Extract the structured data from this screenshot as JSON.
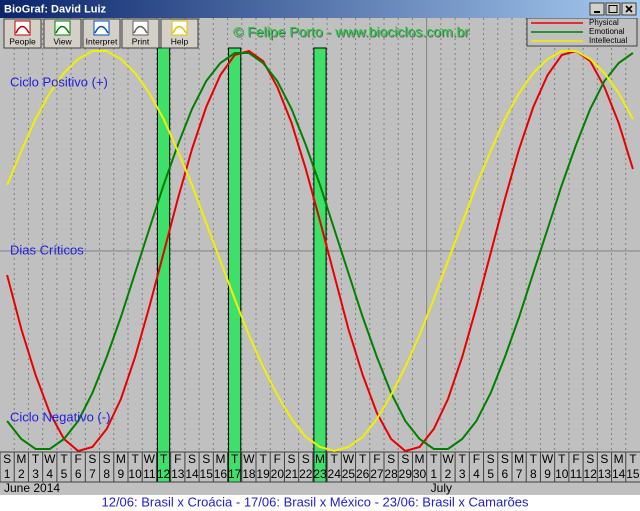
{
  "window": {
    "title": "BioGraf: David Luiz"
  },
  "toolbar": [
    "People",
    "View",
    "Interpret",
    "Print",
    "Help"
  ],
  "chart_data": {
    "type": "line",
    "watermark": "© Felipe Porto - www.biociclos.com.br",
    "annotations": {
      "positive": "Ciclo Positivo (+)",
      "critical": "Dias Críticos",
      "negative": "Ciclo Negativo (-)"
    },
    "x": [
      1,
      2,
      3,
      4,
      5,
      6,
      7,
      8,
      9,
      10,
      11,
      12,
      13,
      14,
      15,
      16,
      17,
      18,
      19,
      20,
      21,
      22,
      23,
      24,
      25,
      26,
      27,
      28,
      29,
      30,
      1,
      2,
      3,
      4,
      5,
      6,
      7,
      8,
      9,
      10,
      11,
      12,
      13,
      14,
      15
    ],
    "weekdays": [
      "S",
      "M",
      "T",
      "W",
      "T",
      "F",
      "S",
      "S",
      "M",
      "T",
      "W",
      "T",
      "F",
      "S",
      "S",
      "M",
      "T",
      "W",
      "T",
      "F",
      "S",
      "S",
      "M",
      "T",
      "W",
      "T",
      "F",
      "S",
      "S",
      "M",
      "T",
      "W",
      "T",
      "F",
      "S",
      "S",
      "M",
      "T",
      "W",
      "T",
      "F",
      "S",
      "S",
      "M",
      "T"
    ],
    "months": [
      "June 2014",
      "July"
    ],
    "critical_days": [
      12,
      17,
      23
    ],
    "critical_color": "#3ee06a",
    "ylim": [
      -1,
      1
    ],
    "grid": true,
    "legend": "top-right",
    "series": [
      {
        "name": "Physical",
        "color": "#e80000",
        "values": [
          -0.12,
          -0.39,
          -0.62,
          -0.81,
          -0.94,
          -1.0,
          -0.98,
          -0.89,
          -0.74,
          -0.53,
          -0.28,
          -0.01,
          0.26,
          0.51,
          0.72,
          0.88,
          0.98,
          1.0,
          0.95,
          0.82,
          0.64,
          0.41,
          0.15,
          -0.12,
          -0.39,
          -0.62,
          -0.81,
          -0.94,
          -1.0,
          -0.98,
          -0.89,
          -0.74,
          -0.53,
          -0.28,
          -0.01,
          0.26,
          0.51,
          0.72,
          0.88,
          0.98,
          1.0,
          0.95,
          0.82,
          0.64,
          0.41
        ]
      },
      {
        "name": "Emotional",
        "color": "#008000",
        "values": [
          -0.85,
          -0.94,
          -0.99,
          -0.99,
          -0.94,
          -0.85,
          -0.71,
          -0.53,
          -0.33,
          -0.11,
          0.11,
          0.33,
          0.53,
          0.71,
          0.85,
          0.94,
          0.99,
          0.99,
          0.94,
          0.85,
          0.71,
          0.53,
          0.33,
          0.11,
          -0.11,
          -0.33,
          -0.53,
          -0.71,
          -0.85,
          -0.94,
          -0.99,
          -0.99,
          -0.94,
          -0.85,
          -0.71,
          -0.53,
          -0.33,
          -0.11,
          0.11,
          0.33,
          0.53,
          0.71,
          0.85,
          0.94,
          0.99
        ]
      },
      {
        "name": "Intellectual",
        "color": "#f0f000",
        "values": [
          0.33,
          0.5,
          0.66,
          0.79,
          0.89,
          0.96,
          1.0,
          1.0,
          0.96,
          0.89,
          0.79,
          0.66,
          0.5,
          0.33,
          0.14,
          -0.05,
          -0.24,
          -0.42,
          -0.58,
          -0.72,
          -0.84,
          -0.93,
          -0.98,
          -1.0,
          -0.98,
          -0.93,
          -0.84,
          -0.72,
          -0.58,
          -0.42,
          -0.24,
          -0.05,
          0.14,
          0.33,
          0.5,
          0.66,
          0.79,
          0.89,
          0.96,
          1.0,
          1.0,
          0.96,
          0.89,
          0.79,
          0.66
        ]
      }
    ]
  },
  "footer": "12/06: Brasil x Croácia - 17/06: Brasil x México - 23/06: Brasil x Camarões"
}
